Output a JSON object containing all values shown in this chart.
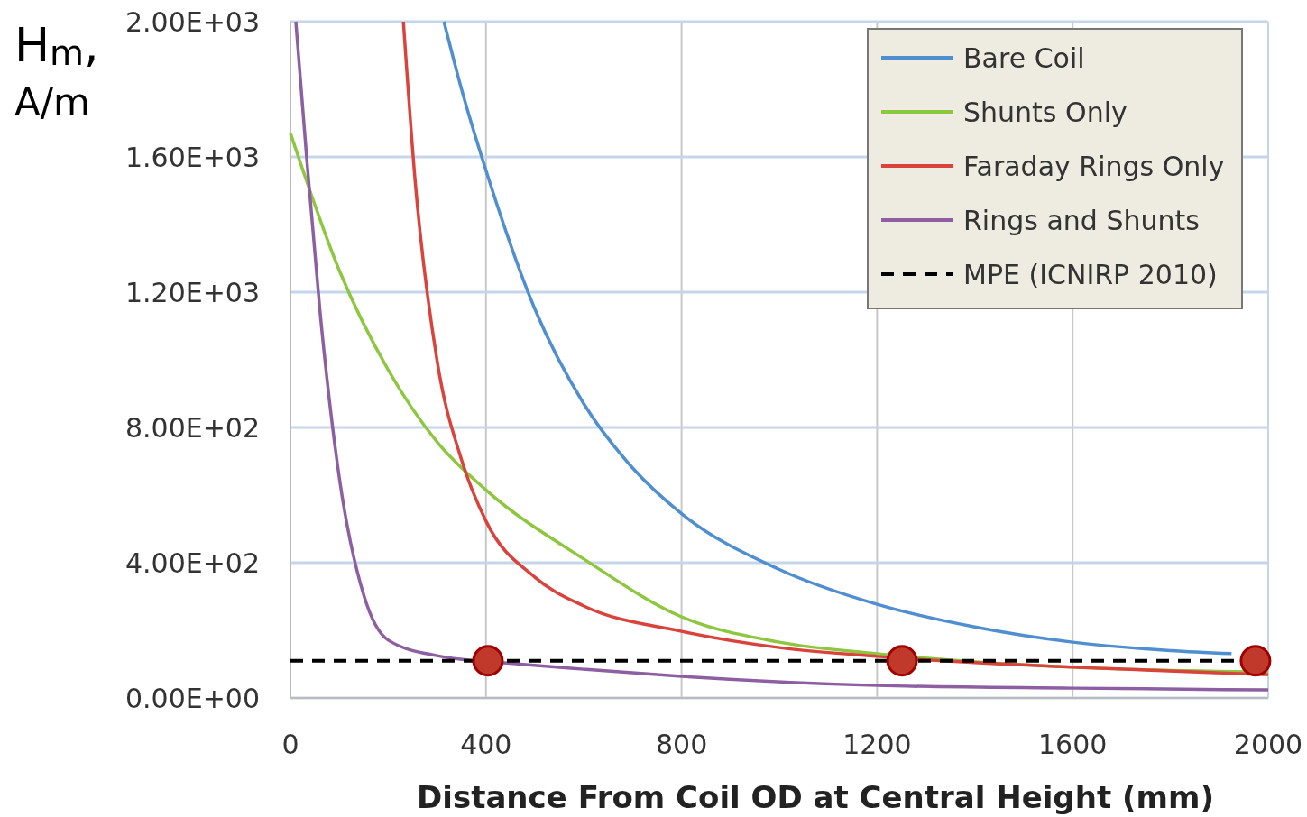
{
  "chart_data": {
    "type": "line",
    "xlabel": "Distance From Coil OD at Central Height (mm)",
    "ylabel": "H$_{m}$, A/m",
    "xlim": [
      0,
      2000
    ],
    "xticks": [
      0,
      400,
      800,
      1200,
      1600,
      2000
    ],
    "ylim": [
      0,
      2000
    ],
    "yticks": [
      {
        "value": 0,
        "label": "0.00E+00"
      },
      {
        "value": 400,
        "label": "4.00E+02"
      },
      {
        "value": 800,
        "label": "8.00E+02"
      },
      {
        "value": 1200,
        "label": "1.20E+03"
      },
      {
        "value": 1600,
        "label": "1.60E+03"
      },
      {
        "value": 2000,
        "label": "2.00E+03"
      }
    ],
    "grid": true,
    "legend": "top right",
    "marker": "none",
    "line_style": "solid",
    "series": [
      {
        "name": "Bare Coil",
        "color": "#4f8fd0",
        "x": [
          314,
          350,
          400,
          500,
          600,
          700,
          800,
          1000,
          1200,
          1400,
          1600,
          1800,
          1925
        ],
        "values": [
          2000,
          1800,
          1560,
          1150,
          870,
          680,
          545,
          380,
          277,
          210,
          165,
          140,
          131
        ]
      },
      {
        "name": "Shunts Only",
        "color": "#8dc63f",
        "x": [
          0,
          100,
          200,
          300,
          400,
          600,
          800,
          1000,
          1200,
          1600,
          2000
        ],
        "values": [
          1670,
          1264,
          970,
          757,
          615,
          411,
          240,
          165,
          131,
          91,
          77
        ]
      },
      {
        "name": "Faraday Rings Only",
        "color": "#d9433b",
        "x": [
          231,
          255,
          300,
          350,
          400,
          500,
          600,
          800,
          1000,
          1200,
          1600,
          2000
        ],
        "values": [
          2000,
          1530,
          997,
          704,
          523,
          357,
          272,
          197,
          149,
          123,
          91,
          69
        ]
      },
      {
        "name": "Rings and Shunts",
        "color": "#8e5ea2",
        "x": [
          11,
          33,
          60,
          100,
          150,
          200,
          300,
          470,
          600,
          800,
          1200,
          1600,
          2000
        ],
        "values": [
          2000,
          1600,
          1150,
          651,
          304,
          171,
          125,
          100,
          85,
          64,
          37,
          29,
          24
        ]
      },
      {
        "type": "scatter",
        "color": "#c0392b",
        "x": [
          404,
          1251,
          1974
        ],
        "values": [
          110,
          110,
          110
        ],
        "marker": "circle"
      }
    ],
    "ref_lines": [
      {
        "axis": "y",
        "value": 110,
        "label": "MPE (ICNIRP 2010)",
        "color": "#000000",
        "line_style": "dashed"
      }
    ]
  }
}
